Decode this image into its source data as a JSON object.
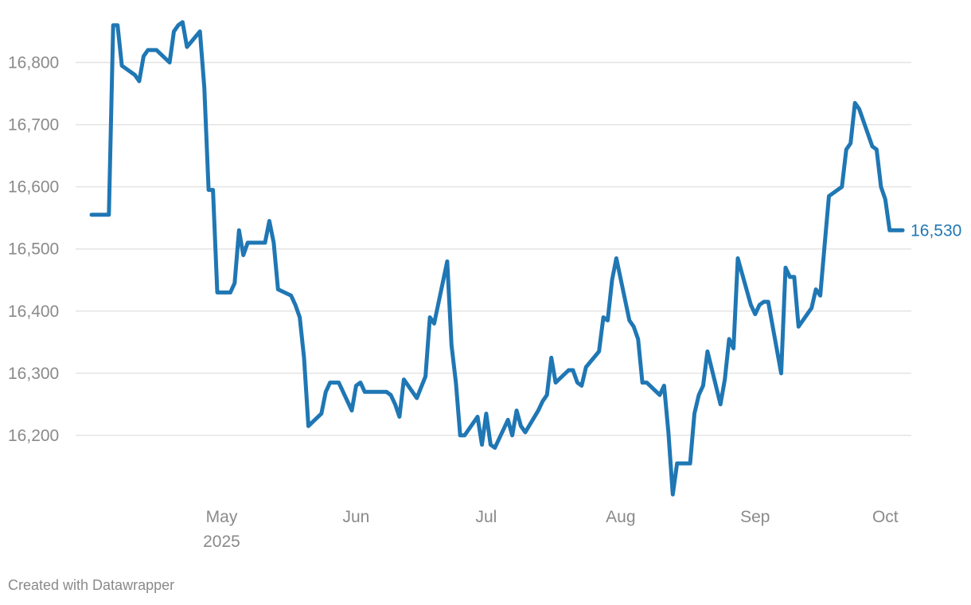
{
  "chart_data": {
    "type": "line",
    "title": "",
    "xlabel": "",
    "ylabel": "",
    "ylim": [
      16100,
      16875
    ],
    "y_ticks": [
      16200,
      16300,
      16400,
      16500,
      16600,
      16700,
      16800
    ],
    "y_tick_labels": [
      "16,200",
      "16,300",
      "16,400",
      "16,500",
      "16,600",
      "16,700",
      "16,800"
    ],
    "x_range": [
      "2025-04-01",
      "2025-10-07"
    ],
    "x_ticks": [
      {
        "date": "2025-05-01",
        "label": "May",
        "sublabel": "2025"
      },
      {
        "date": "2025-06-01",
        "label": "Jun",
        "sublabel": ""
      },
      {
        "date": "2025-07-01",
        "label": "Jul",
        "sublabel": ""
      },
      {
        "date": "2025-08-01",
        "label": "Aug",
        "sublabel": ""
      },
      {
        "date": "2025-09-01",
        "label": "Sep",
        "sublabel": ""
      },
      {
        "date": "2025-10-01",
        "label": "Oct",
        "sublabel": ""
      }
    ],
    "grid": true,
    "end_label": "16,530",
    "series": [
      {
        "color": "#1f77b4",
        "points": [
          [
            "2025-04-01",
            16555
          ],
          [
            "2025-04-02",
            16555
          ],
          [
            "2025-04-03",
            16555
          ],
          [
            "2025-04-04",
            16555
          ],
          [
            "2025-04-05",
            16555
          ],
          [
            "2025-04-06",
            16860
          ],
          [
            "2025-04-07",
            16860
          ],
          [
            "2025-04-08",
            16795
          ],
          [
            "2025-04-11",
            16780
          ],
          [
            "2025-04-12",
            16770
          ],
          [
            "2025-04-13",
            16810
          ],
          [
            "2025-04-14",
            16820
          ],
          [
            "2025-04-16",
            16820
          ],
          [
            "2025-04-19",
            16800
          ],
          [
            "2025-04-20",
            16850
          ],
          [
            "2025-04-21",
            16860
          ],
          [
            "2025-04-22",
            16865
          ],
          [
            "2025-04-23",
            16825
          ],
          [
            "2025-04-26",
            16850
          ],
          [
            "2025-04-27",
            16760
          ],
          [
            "2025-04-28",
            16595
          ],
          [
            "2025-04-29",
            16595
          ],
          [
            "2025-04-30",
            16430
          ],
          [
            "2025-05-03",
            16430
          ],
          [
            "2025-05-04",
            16445
          ],
          [
            "2025-05-05",
            16530
          ],
          [
            "2025-05-06",
            16490
          ],
          [
            "2025-05-07",
            16510
          ],
          [
            "2025-05-11",
            16510
          ],
          [
            "2025-05-12",
            16545
          ],
          [
            "2025-05-13",
            16510
          ],
          [
            "2025-05-14",
            16435
          ],
          [
            "2025-05-17",
            16425
          ],
          [
            "2025-05-18",
            16410
          ],
          [
            "2025-05-19",
            16390
          ],
          [
            "2025-05-20",
            16325
          ],
          [
            "2025-05-21",
            16215
          ],
          [
            "2025-05-24",
            16235
          ],
          [
            "2025-05-25",
            16270
          ],
          [
            "2025-05-26",
            16285
          ],
          [
            "2025-05-28",
            16285
          ],
          [
            "2025-05-31",
            16240
          ],
          [
            "2025-06-01",
            16280
          ],
          [
            "2025-06-02",
            16285
          ],
          [
            "2025-06-03",
            16270
          ],
          [
            "2025-06-08",
            16270
          ],
          [
            "2025-06-09",
            16265
          ],
          [
            "2025-06-10",
            16250
          ],
          [
            "2025-06-11",
            16230
          ],
          [
            "2025-06-12",
            16290
          ],
          [
            "2025-06-15",
            16260
          ],
          [
            "2025-06-17",
            16295
          ],
          [
            "2025-06-18",
            16390
          ],
          [
            "2025-06-19",
            16380
          ],
          [
            "2025-06-22",
            16480
          ],
          [
            "2025-06-23",
            16345
          ],
          [
            "2025-06-24",
            16285
          ],
          [
            "2025-06-25",
            16200
          ],
          [
            "2025-06-26",
            16200
          ],
          [
            "2025-06-29",
            16230
          ],
          [
            "2025-06-30",
            16185
          ],
          [
            "2025-07-01",
            16235
          ],
          [
            "2025-07-02",
            16185
          ],
          [
            "2025-07-03",
            16180
          ],
          [
            "2025-07-06",
            16225
          ],
          [
            "2025-07-07",
            16200
          ],
          [
            "2025-07-08",
            16240
          ],
          [
            "2025-07-09",
            16215
          ],
          [
            "2025-07-10",
            16205
          ],
          [
            "2025-07-13",
            16240
          ],
          [
            "2025-07-14",
            16255
          ],
          [
            "2025-07-15",
            16265
          ],
          [
            "2025-07-16",
            16325
          ],
          [
            "2025-07-17",
            16285
          ],
          [
            "2025-07-20",
            16305
          ],
          [
            "2025-07-21",
            16305
          ],
          [
            "2025-07-22",
            16285
          ],
          [
            "2025-07-23",
            16280
          ],
          [
            "2025-07-24",
            16310
          ],
          [
            "2025-07-27",
            16335
          ],
          [
            "2025-07-28",
            16390
          ],
          [
            "2025-07-29",
            16385
          ],
          [
            "2025-07-30",
            16450
          ],
          [
            "2025-07-31",
            16485
          ],
          [
            "2025-08-03",
            16385
          ],
          [
            "2025-08-04",
            16375
          ],
          [
            "2025-08-05",
            16355
          ],
          [
            "2025-08-06",
            16285
          ],
          [
            "2025-08-07",
            16285
          ],
          [
            "2025-08-10",
            16265
          ],
          [
            "2025-08-11",
            16280
          ],
          [
            "2025-08-12",
            16205
          ],
          [
            "2025-08-13",
            16105
          ],
          [
            "2025-08-14",
            16155
          ],
          [
            "2025-08-17",
            16155
          ],
          [
            "2025-08-18",
            16235
          ],
          [
            "2025-08-19",
            16265
          ],
          [
            "2025-08-20",
            16280
          ],
          [
            "2025-08-21",
            16335
          ],
          [
            "2025-08-24",
            16250
          ],
          [
            "2025-08-25",
            16290
          ],
          [
            "2025-08-26",
            16355
          ],
          [
            "2025-08-27",
            16340
          ],
          [
            "2025-08-28",
            16485
          ],
          [
            "2025-08-31",
            16410
          ],
          [
            "2025-09-01",
            16395
          ],
          [
            "2025-09-02",
            16410
          ],
          [
            "2025-09-03",
            16415
          ],
          [
            "2025-09-04",
            16415
          ],
          [
            "2025-09-07",
            16300
          ],
          [
            "2025-09-08",
            16470
          ],
          [
            "2025-09-09",
            16455
          ],
          [
            "2025-09-10",
            16455
          ],
          [
            "2025-09-11",
            16375
          ],
          [
            "2025-09-14",
            16405
          ],
          [
            "2025-09-15",
            16435
          ],
          [
            "2025-09-16",
            16425
          ],
          [
            "2025-09-17",
            16505
          ],
          [
            "2025-09-18",
            16585
          ],
          [
            "2025-09-21",
            16600
          ],
          [
            "2025-09-22",
            16660
          ],
          [
            "2025-09-23",
            16670
          ],
          [
            "2025-09-24",
            16735
          ],
          [
            "2025-09-25",
            16725
          ],
          [
            "2025-09-28",
            16665
          ],
          [
            "2025-09-29",
            16660
          ],
          [
            "2025-09-30",
            16600
          ],
          [
            "2025-10-01",
            16580
          ],
          [
            "2025-10-02",
            16530
          ],
          [
            "2025-10-05",
            16530
          ]
        ]
      }
    ]
  },
  "footer": {
    "credit": "Created with Datawrapper"
  }
}
